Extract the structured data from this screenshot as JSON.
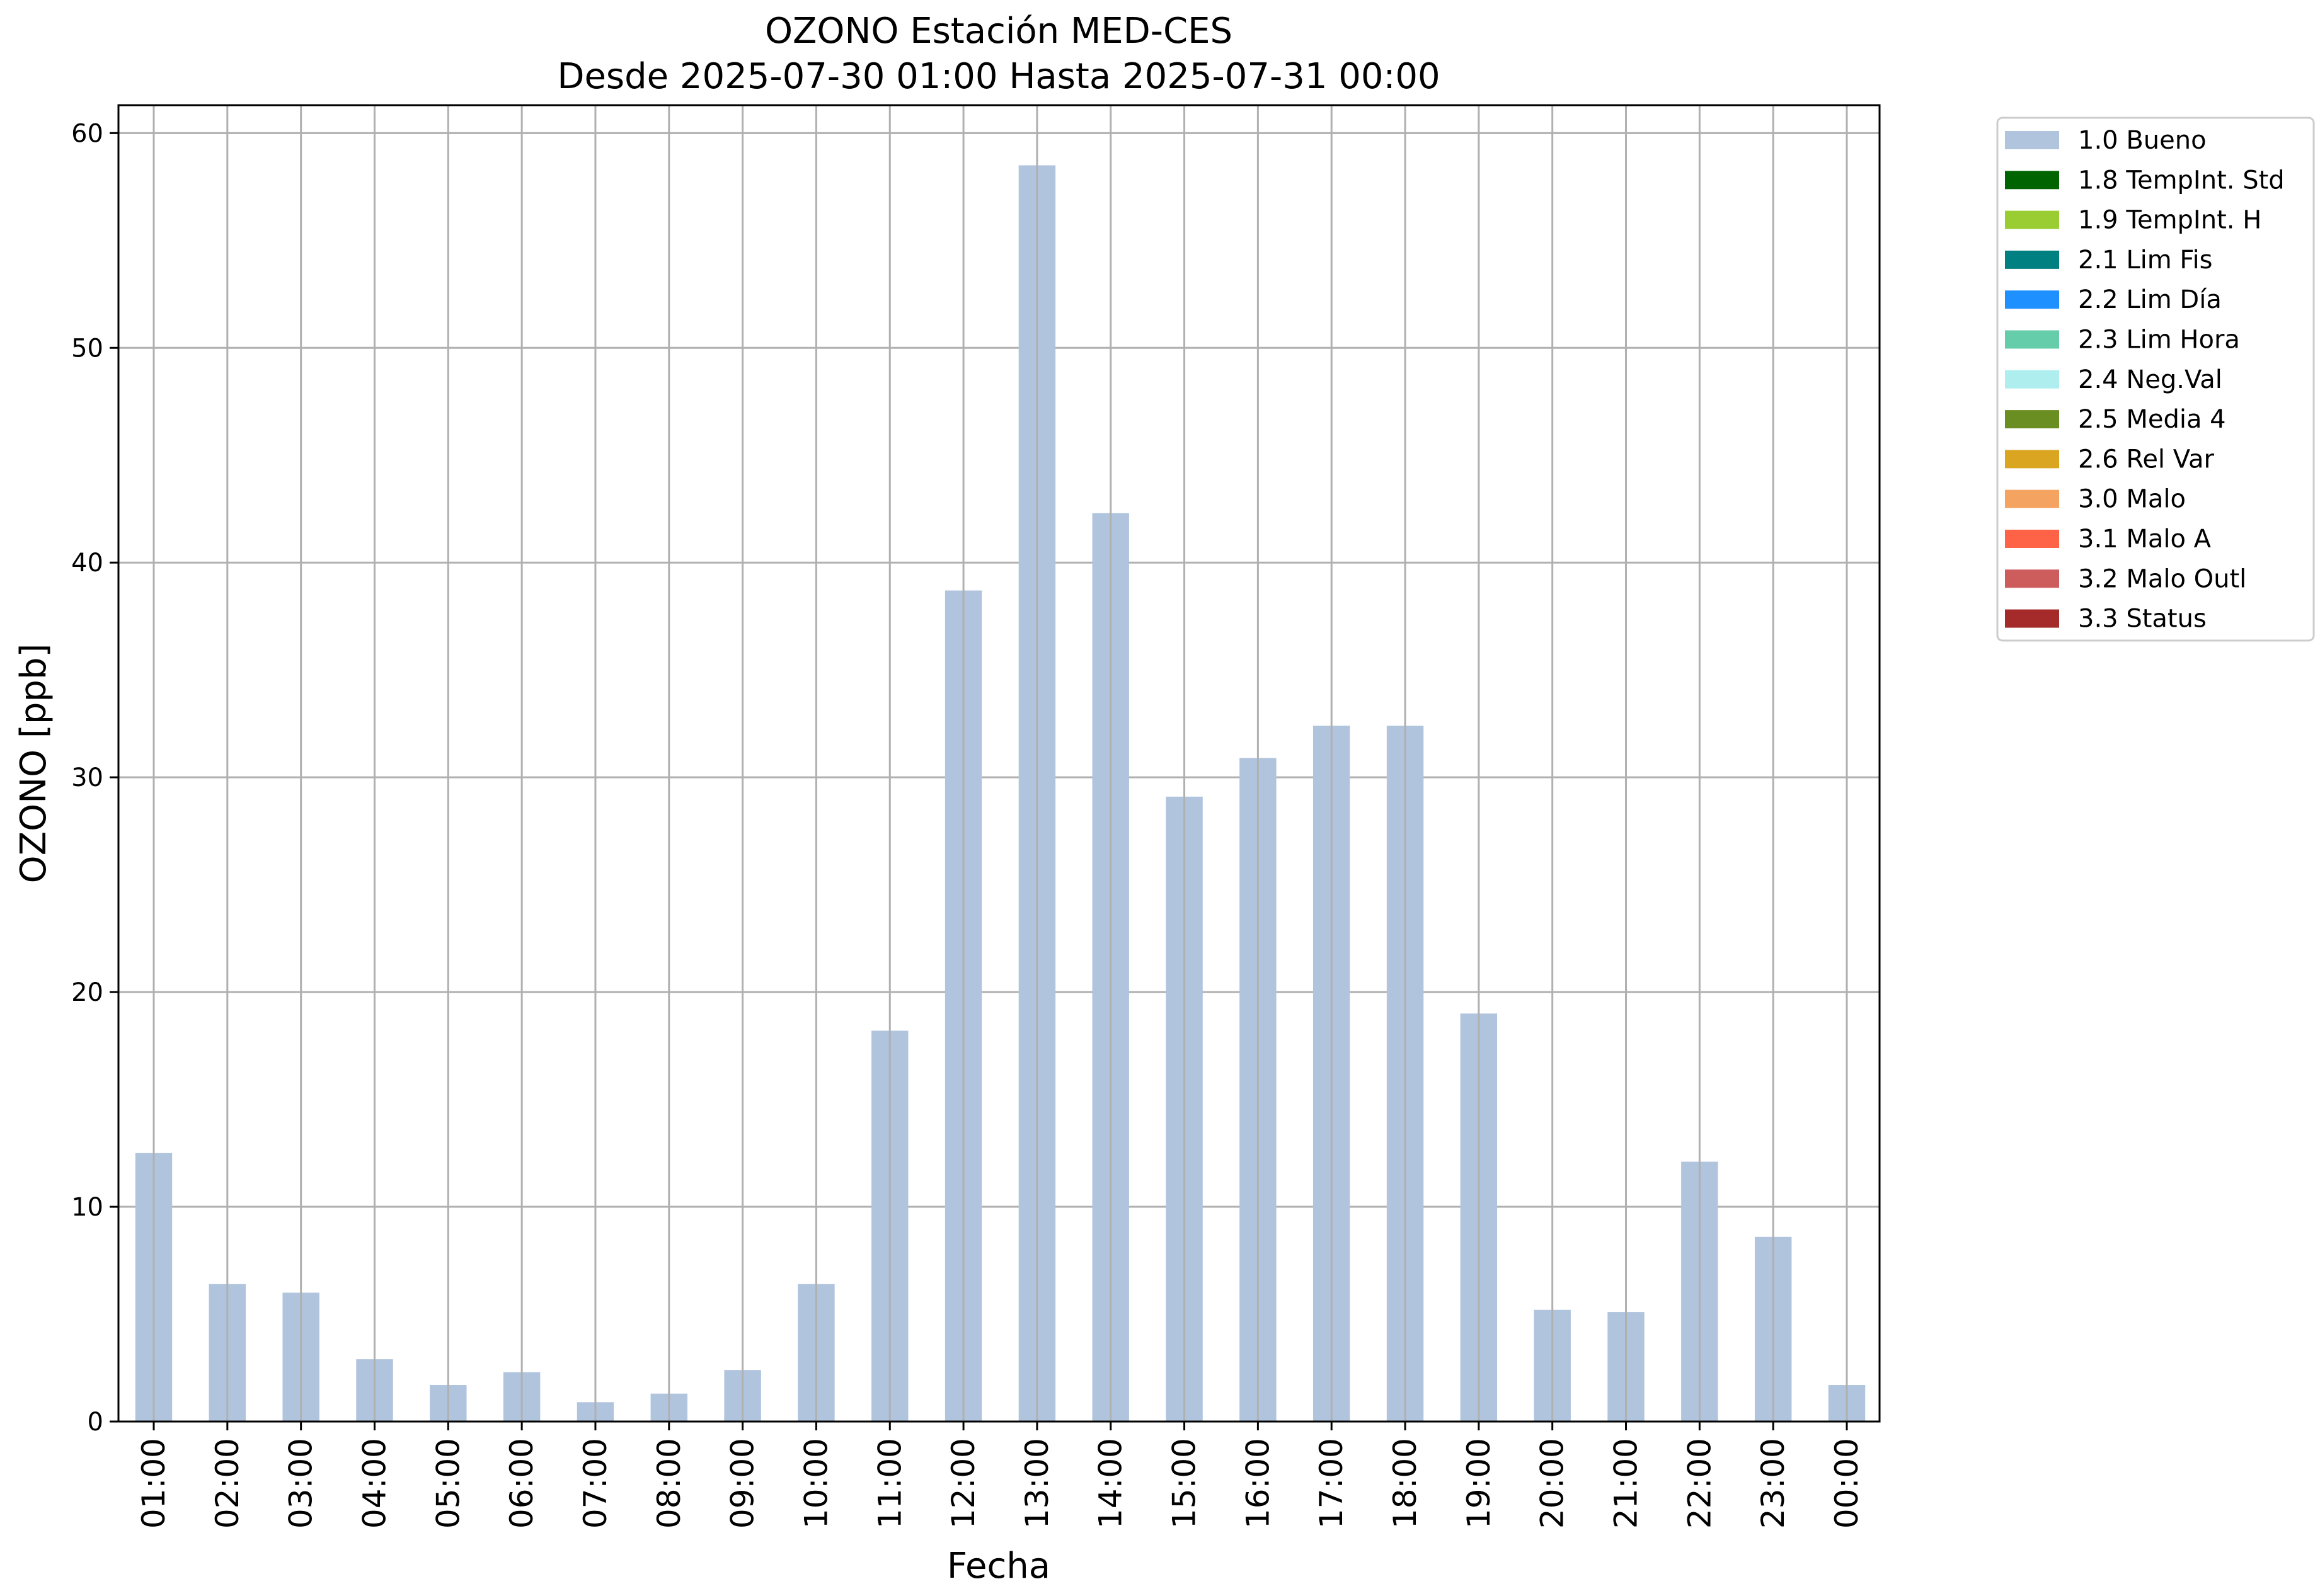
{
  "chart_data": {
    "type": "bar",
    "title": "OZONO Estación MED-CES",
    "subtitle": "Desde 2025-07-30 01:00 Hasta 2025-07-31 00:00",
    "xlabel": "Fecha",
    "ylabel": "OZONO [ppb]",
    "ylim": [
      0,
      61.3
    ],
    "yticks": [
      0,
      10,
      20,
      30,
      40,
      50,
      60
    ],
    "grid": true,
    "legend_position": "outside-top-right",
    "categories": [
      "01:00",
      "02:00",
      "03:00",
      "04:00",
      "05:00",
      "06:00",
      "07:00",
      "08:00",
      "09:00",
      "10:00",
      "11:00",
      "12:00",
      "13:00",
      "14:00",
      "15:00",
      "16:00",
      "17:00",
      "18:00",
      "19:00",
      "20:00",
      "21:00",
      "22:00",
      "23:00",
      "00:00"
    ],
    "series": [
      {
        "name": "1.0 Bueno",
        "color": "#b0c4de",
        "values": [
          12.5,
          6.4,
          6.0,
          2.9,
          1.7,
          2.3,
          0.9,
          1.3,
          2.4,
          6.4,
          18.2,
          38.7,
          58.5,
          42.3,
          29.1,
          30.9,
          32.4,
          32.4,
          19.0,
          5.2,
          5.1,
          12.1,
          8.6,
          1.7
        ]
      }
    ],
    "legend": [
      {
        "label": "1.0 Bueno",
        "color": "#b0c4de"
      },
      {
        "label": "1.8 TempInt. Std",
        "color": "#006400"
      },
      {
        "label": "1.9 TempInt. H",
        "color": "#9acd32"
      },
      {
        "label": "2.1 Lim Fis",
        "color": "#008080"
      },
      {
        "label": "2.2 Lim Día",
        "color": "#1e90ff"
      },
      {
        "label": "2.3 Lim Hora",
        "color": "#66cdaa"
      },
      {
        "label": "2.4 Neg.Val",
        "color": "#afeeee"
      },
      {
        "label": "2.5 Media 4",
        "color": "#6b8e23"
      },
      {
        "label": "2.6 Rel Var",
        "color": "#daa520"
      },
      {
        "label": "3.0 Malo",
        "color": "#f4a460"
      },
      {
        "label": "3.1 Malo A",
        "color": "#ff6347"
      },
      {
        "label": "3.2 Malo Outl",
        "color": "#cd5c5c"
      },
      {
        "label": "3.3 Status",
        "color": "#a52a2a"
      }
    ]
  }
}
